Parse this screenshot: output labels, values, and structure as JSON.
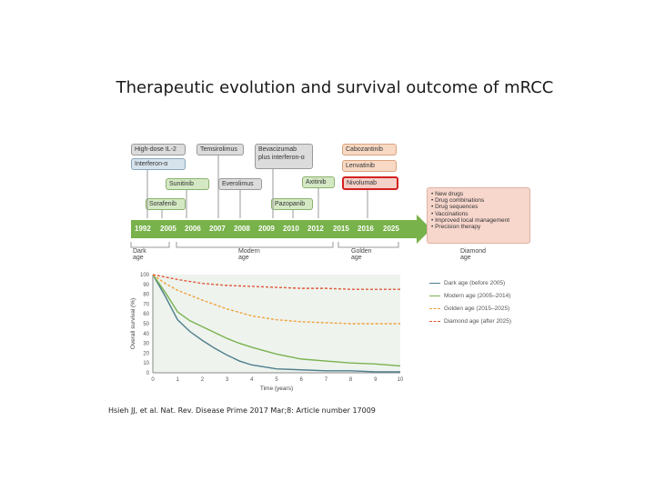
{
  "slide": {
    "title": "Therapeutic evolution and survival outcome of mRCC",
    "citation": "Hsieh JJ, et al. Nat. Rev. Disease Prime 2017 Mar;8: Article number 17009"
  },
  "therapies": {
    "high_dose_il2": "High-dose IL-2",
    "interferon": "Interferon-α",
    "temsirolimus": "Temsirolimus",
    "bevacizumab": "Bevacizumab plus interferon-α",
    "cabozantinib": "Cabozantinib",
    "lenvatinib": "Lenvatinib",
    "nivolumab": "Nivolumab",
    "sunitinib": "Sunitinib",
    "everolimus": "Everolimus",
    "axitinib": "Axitinib",
    "sorafenib": "Sorafenib",
    "pazopanib": "Pazopanib"
  },
  "timeline": {
    "years": [
      "1992",
      "2005",
      "2006",
      "2007",
      "2008",
      "2009",
      "2010",
      "2012",
      "2015",
      "2016",
      "2025"
    ],
    "eras": [
      "Dark age",
      "Modern age",
      "Golden age",
      "Diamond age"
    ]
  },
  "diamond_age_items": [
    "• New drugs",
    "• Drug combinations",
    "• Drug sequences",
    "• Vaccinations",
    "• Improved local management",
    "• Precision therapy"
  ],
  "colors": {
    "timeline_green": "#78b24b",
    "dark_age": "#4e7e8c",
    "modern_age": "#79b24f",
    "golden_age": "#f0a23c",
    "diamond_age": "#e05a3a"
  },
  "chart_data": {
    "type": "line",
    "xlabel": "Time (years)",
    "ylabel": "Overall survival (%)",
    "xlim": [
      0,
      10
    ],
    "ylim": [
      0,
      100
    ],
    "x_ticks": [
      "0",
      "1",
      "2",
      "3",
      "4",
      "5",
      "6",
      "7",
      "8",
      "9",
      "10"
    ],
    "y_ticks": [
      "100",
      "90",
      "80",
      "70",
      "60",
      "50",
      "40",
      "30",
      "20",
      "10",
      "0"
    ],
    "series": [
      {
        "name": "Dark age (before 2005)",
        "style": "solid",
        "color": "#4e7e8c",
        "x": [
          0,
          0.5,
          1,
          1.5,
          2,
          2.5,
          3,
          3.5,
          4,
          5,
          6,
          7,
          8,
          9,
          10
        ],
        "y": [
          100,
          78,
          54,
          42,
          33,
          25,
          18,
          12,
          8,
          4,
          3,
          2,
          2,
          1,
          1
        ]
      },
      {
        "name": "Modern age (2005–2014)",
        "style": "solid",
        "color": "#79b24f",
        "x": [
          0,
          0.5,
          1,
          1.5,
          2,
          2.5,
          3,
          3.5,
          4,
          5,
          6,
          7,
          8,
          9,
          10
        ],
        "y": [
          100,
          82,
          62,
          53,
          47,
          41,
          35,
          30,
          26,
          19,
          14,
          12,
          10,
          9,
          7
        ]
      },
      {
        "name": "Golden age (2015–2025)",
        "style": "dashed",
        "color": "#f0a23c",
        "x": [
          0,
          0.5,
          1,
          2,
          3,
          4,
          5,
          6,
          7,
          8,
          9,
          10
        ],
        "y": [
          100,
          91,
          84,
          74,
          65,
          58,
          54,
          52,
          51,
          50,
          50,
          50
        ]
      },
      {
        "name": "Diamond age (after 2025)",
        "style": "dashed",
        "color": "#e05a3a",
        "x": [
          0,
          1,
          2,
          3,
          4,
          5,
          6,
          7,
          8,
          9,
          10
        ],
        "y": [
          100,
          95,
          91,
          89,
          88,
          87,
          86,
          86,
          85,
          85,
          85
        ]
      }
    ]
  }
}
